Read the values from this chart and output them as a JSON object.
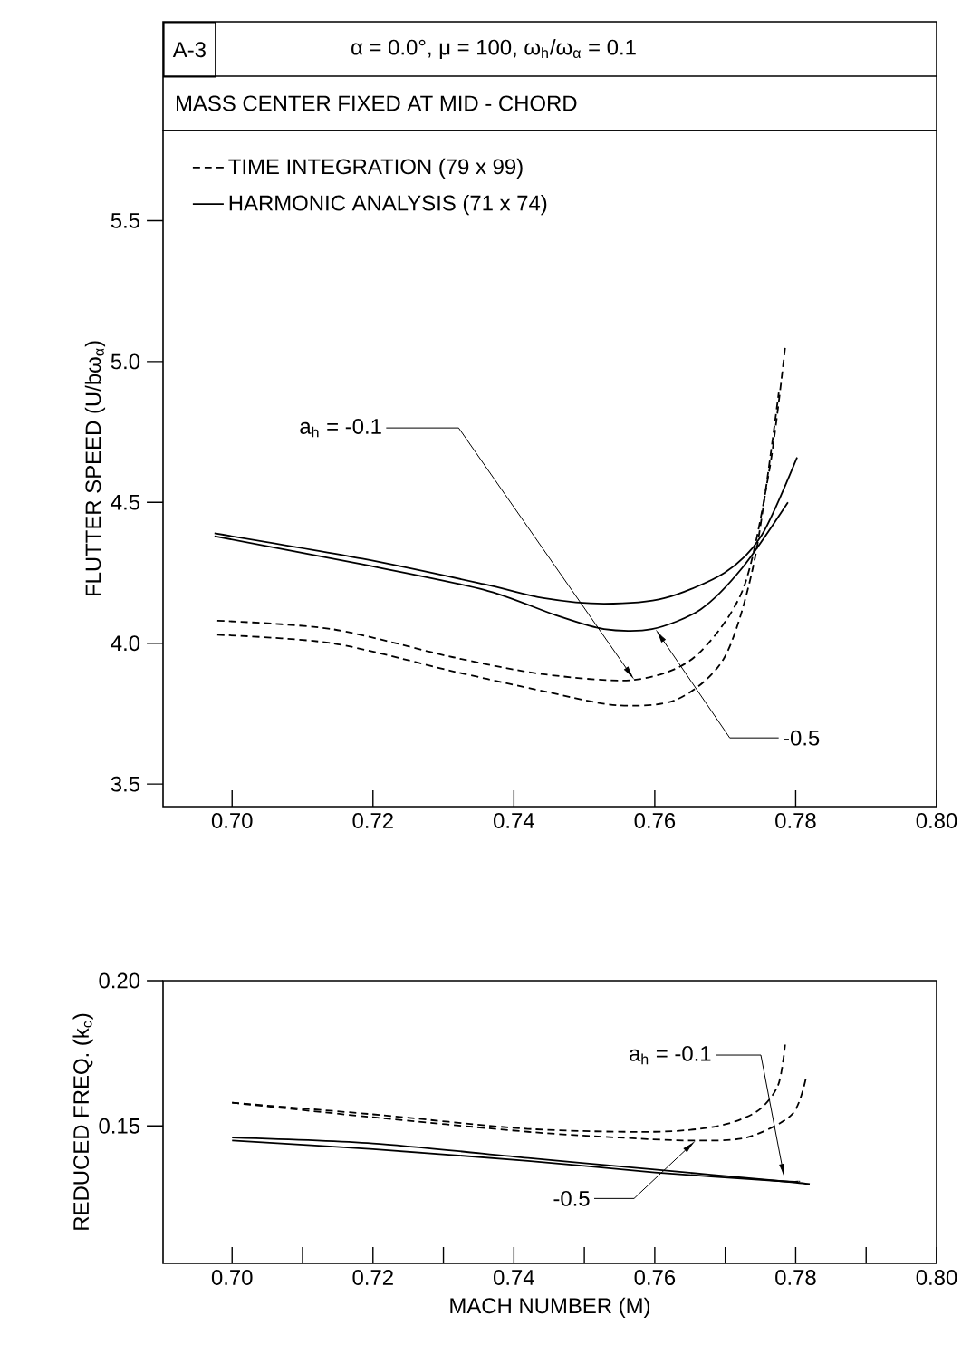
{
  "chart_data": [
    {
      "type": "line",
      "title": "A-3",
      "subtitle": "α = 0.0°, μ = 100, ω$_{h}$/ω$_{α}$ = 0.1",
      "ylabel": "FLUTTER  SPEED  (U/bω$_{α}$)",
      "legend": "top left",
      "xlim": [
        0.6902,
        0.8
      ],
      "ylim": [
        3.42,
        5.82
      ],
      "xticks": [
        {
          "value": 0.7,
          "label": "0.70"
        },
        {
          "value": 0.72,
          "label": "0.72"
        },
        {
          "value": 0.74,
          "label": "0.74"
        },
        {
          "value": 0.76,
          "label": "0.76"
        },
        {
          "value": 0.78,
          "label": "0.78"
        },
        {
          "value": 0.8,
          "label": "0.80"
        }
      ],
      "yticks": [
        {
          "value": 3.5,
          "label": "3.5"
        },
        {
          "value": 4.0,
          "label": "4.0"
        },
        {
          "value": 4.5,
          "label": "4.5"
        },
        {
          "value": 5.0,
          "label": "5.0"
        },
        {
          "value": 5.5,
          "label": "5.5"
        }
      ],
      "series": [
        {
          "name": "TIME  INTEGRATION  (79 x 99)",
          "color": "#000000",
          "line_style": "dashed",
          "x": [
            0.6979,
            0.7142,
            0.7314,
            0.7442,
            0.7571,
            0.7656,
            0.7725,
            0.7763,
            0.7785
          ],
          "values": [
            4.08,
            4.05,
            3.95,
            3.89,
            3.87,
            3.95,
            4.19,
            4.62,
            5.05
          ]
        },
        {
          "color": "#000000",
          "line_style": "dashed",
          "x": [
            0.6979,
            0.7142,
            0.7314,
            0.7442,
            0.7545,
            0.7631,
            0.7699,
            0.7742,
            0.7776
          ],
          "values": [
            4.03,
            4.0,
            3.9,
            3.83,
            3.78,
            3.8,
            3.95,
            4.3,
            4.89
          ]
        },
        {
          "name": "HARMONIC  ANALYSIS  (71 x 74)",
          "color": "#000000",
          "line_style": "solid",
          "x": [
            0.6975,
            0.7185,
            0.7357,
            0.7442,
            0.7528,
            0.7614,
            0.7699,
            0.7751,
            0.7802
          ],
          "values": [
            4.39,
            4.3,
            4.21,
            4.16,
            4.14,
            4.16,
            4.25,
            4.38,
            4.66
          ]
        },
        {
          "color": "#000000",
          "line_style": "solid",
          "x": [
            0.6975,
            0.7185,
            0.7357,
            0.7459,
            0.7528,
            0.7596,
            0.7665,
            0.7725,
            0.7789
          ],
          "values": [
            4.38,
            4.28,
            4.19,
            4.1,
            4.05,
            4.05,
            4.12,
            4.27,
            4.5
          ]
        }
      ],
      "annotations": [
        "MASS  CENTER  FIXED  AT  MID - CHORD",
        {
          "text": "a$_{h}$ = -0.1",
          "x": 0.7571,
          "y": 3.87
        },
        {
          "text": "-0.5",
          "x": 0.7601,
          "y": 4.05
        }
      ]
    },
    {
      "type": "line",
      "xlabel": "MACH   NUMBER    (M)",
      "ylabel": "REDUCED  FREQ.  (k$_{c}$)",
      "xlim": [
        0.6902,
        0.8
      ],
      "ylim": [
        0.1027,
        0.2
      ],
      "xticks": [
        {
          "value": 0.7,
          "label": "0.70"
        },
        {
          "value": 0.71,
          "label": null
        },
        {
          "value": 0.72,
          "label": "0.72"
        },
        {
          "value": 0.73,
          "label": null
        },
        {
          "value": 0.74,
          "label": "0.74"
        },
        {
          "value": 0.75,
          "label": null
        },
        {
          "value": 0.76,
          "label": "0.76"
        },
        {
          "value": 0.77,
          "label": null
        },
        {
          "value": 0.78,
          "label": "0.78"
        },
        {
          "value": 0.79,
          "label": null
        },
        {
          "value": 0.8,
          "label": "0.80"
        }
      ],
      "yticks": [
        {
          "value": 0.15,
          "label": "0.15"
        },
        {
          "value": 0.2,
          "label": "0.20"
        }
      ],
      "series": [
        {
          "color": "#000000",
          "line_style": "dashed",
          "x": [
            0.7,
            0.72,
            0.742,
            0.76,
            0.769,
            0.7745,
            0.7775,
            0.7785
          ],
          "values": [
            0.158,
            0.154,
            0.149,
            0.148,
            0.15,
            0.155,
            0.164,
            0.178
          ]
        },
        {
          "color": "#000000",
          "line_style": "dashed",
          "x": [
            0.7,
            0.72,
            0.742,
            0.755,
            0.765,
            0.773,
            0.7795,
            0.7815
          ],
          "values": [
            0.158,
            0.153,
            0.148,
            0.146,
            0.145,
            0.146,
            0.154,
            0.167
          ]
        },
        {
          "color": "#000000",
          "line_style": "solid",
          "x": [
            0.7,
            0.72,
            0.742,
            0.76,
            0.778,
            0.782
          ],
          "values": [
            0.146,
            0.144,
            0.139,
            0.135,
            0.131,
            0.13
          ]
        },
        {
          "color": "#000000",
          "line_style": "solid",
          "x": [
            0.7,
            0.72,
            0.742,
            0.76,
            0.778,
            0.7805
          ],
          "values": [
            0.145,
            0.142,
            0.138,
            0.134,
            0.131,
            0.131
          ]
        }
      ],
      "annotations": [
        {
          "text": "a$_{h}$ = -0.1",
          "x": 0.7784,
          "y": 0.132
        },
        {
          "text": "-0.5",
          "x": 0.7658,
          "y": 0.145
        }
      ]
    }
  ]
}
